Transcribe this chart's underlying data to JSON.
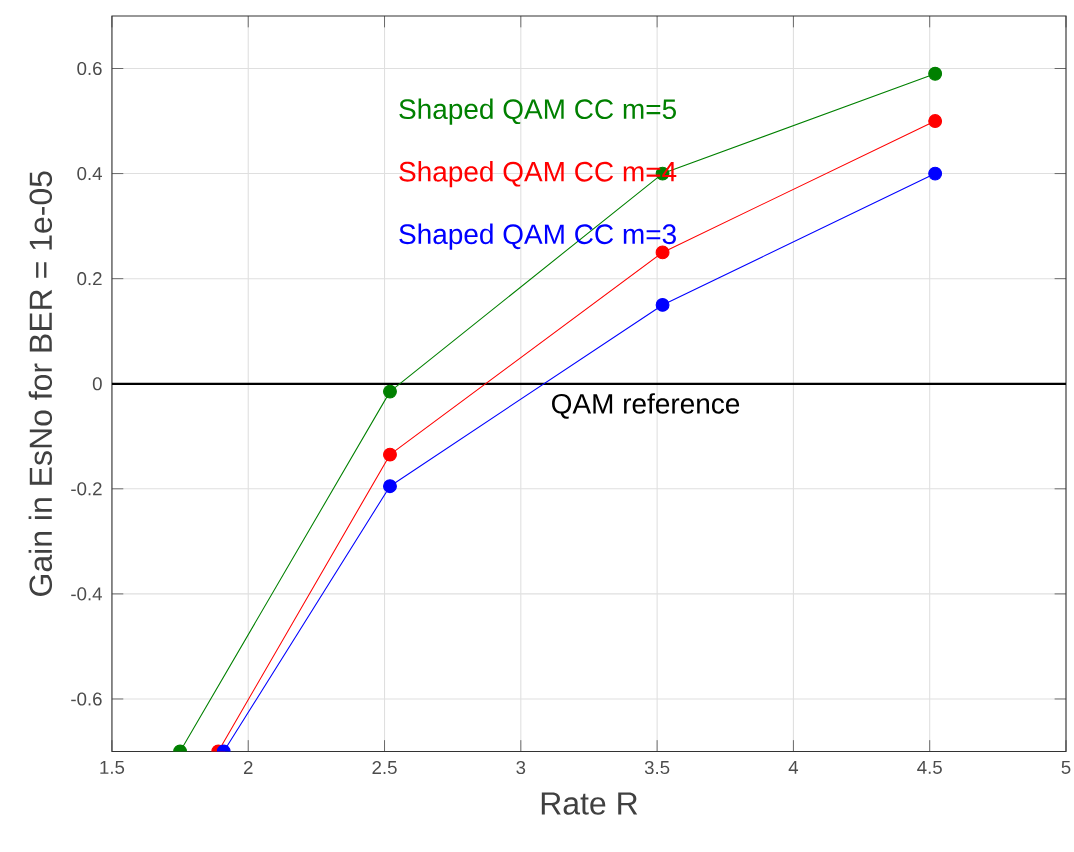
{
  "chart_data": {
    "type": "line",
    "xlabel": "Rate R",
    "ylabel": "Gain in EsNo for BER = 1e-05",
    "xlim": [
      1.5,
      5
    ],
    "xticks": [
      1.5,
      2,
      2.5,
      3,
      3.5,
      4,
      4.5,
      5
    ],
    "ylim": [
      -0.7,
      0.7
    ],
    "yticks": [
      -0.6,
      -0.4,
      -0.2,
      0,
      0.2,
      0.4,
      0.6
    ],
    "grid": true,
    "marker": "circle",
    "line_style": "solid",
    "ref_lines": [
      {
        "axis": "y",
        "value": 0,
        "label": "QAM reference",
        "color": "#000000"
      }
    ],
    "series": [
      {
        "name": "Shaped QAM CC m=5",
        "color": "#008000",
        "x": [
          1.75,
          2.52,
          3.52,
          4.52
        ],
        "values": [
          -0.7,
          -0.015,
          0.4,
          0.59
        ]
      },
      {
        "name": "Shaped QAM CC m=4",
        "color": "#ff0000",
        "x": [
          1.89,
          2.52,
          3.52,
          4.52
        ],
        "values": [
          -0.7,
          -0.135,
          0.25,
          0.5
        ]
      },
      {
        "name": "Shaped QAM CC m=3",
        "color": "#0000ff",
        "x": [
          1.91,
          2.52,
          3.52,
          4.52
        ],
        "values": [
          -0.7,
          -0.195,
          0.15,
          0.4
        ]
      }
    ]
  }
}
